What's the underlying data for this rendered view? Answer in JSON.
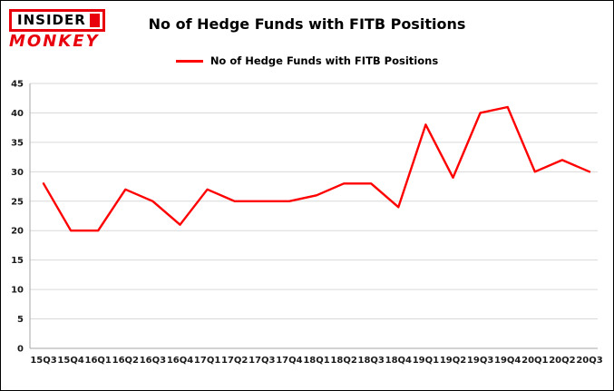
{
  "logo": {
    "line1": "INSIDER",
    "line2": "MONKEY",
    "color": "#e8000d"
  },
  "header": {
    "title": "No of Hedge Funds with FITB Positions"
  },
  "legend": {
    "label": "No of Hedge Funds with FITB Positions",
    "color": "#ff0000"
  },
  "chart_data": {
    "type": "line",
    "title": "No of Hedge Funds with FITB Positions",
    "xlabel": "",
    "ylabel": "",
    "ylim": [
      0,
      45
    ],
    "yticks": [
      0,
      5,
      10,
      15,
      20,
      25,
      30,
      35,
      40,
      45
    ],
    "grid": true,
    "legend_position": "top",
    "categories": [
      "15Q3",
      "15Q4",
      "16Q1",
      "16Q2",
      "16Q3",
      "16Q4",
      "17Q1",
      "17Q2",
      "17Q3",
      "17Q4",
      "18Q1",
      "18Q2",
      "18Q3",
      "18Q4",
      "19Q1",
      "19Q2",
      "19Q3",
      "19Q4",
      "20Q1",
      "20Q2",
      "20Q3"
    ],
    "series": [
      {
        "name": "No of Hedge Funds with FITB Positions",
        "color": "#ff0000",
        "values": [
          28,
          20,
          20,
          27,
          25,
          21,
          27,
          25,
          25,
          25,
          26,
          28,
          28,
          24,
          38,
          29,
          40,
          41,
          30,
          32,
          30
        ]
      }
    ]
  }
}
